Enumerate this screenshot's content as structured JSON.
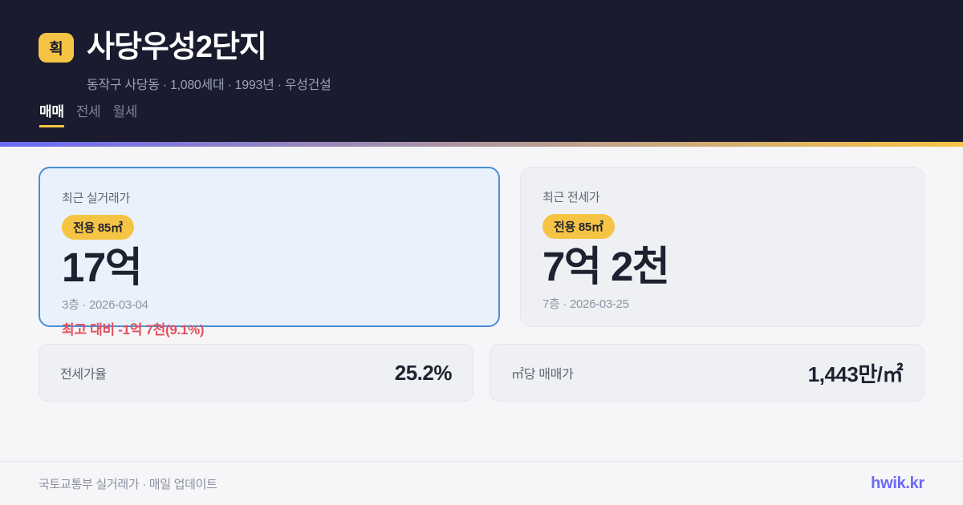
{
  "header": {
    "badge": "획",
    "title": "사당우성2단지",
    "subtitle": "동작구 사당동 · 1,080세대 · 1993년 · 우성건설",
    "tabs": [
      {
        "label": "매매",
        "active": true
      },
      {
        "label": "전세",
        "active": false
      },
      {
        "label": "월세",
        "active": false
      }
    ]
  },
  "cards": {
    "sale": {
      "label": "최근 실거래가",
      "area_badge": "전용 85㎡",
      "price": "17억",
      "detail": "3층 · 2026-03-04",
      "delta": "최고 대비 -1억 7천(9.1%)"
    },
    "jeonse": {
      "label": "최근 전세가",
      "area_badge": "전용 85㎡",
      "price": "7억 2천",
      "detail": "7층 · 2026-03-25"
    }
  },
  "stats": [
    {
      "label": "전세가율",
      "value": "25.2%"
    },
    {
      "label": "㎡당 매매가",
      "value": "1,443만/㎡"
    }
  ],
  "footer": {
    "source": "국토교통부 실거래가 · 매일 업데이트",
    "brand": "hwik.kr"
  },
  "colors": {
    "header_bg": "#1a1b2e",
    "accent_yellow": "#f6c445",
    "brand_indigo": "#6a6af5",
    "highlight_blue_border": "#4a8fd4",
    "highlight_blue_bg": "#e9f2fc",
    "negative_red": "#e4505b",
    "page_bg": "#f6f6f8",
    "card_gray_bg": "#eef0f3"
  }
}
